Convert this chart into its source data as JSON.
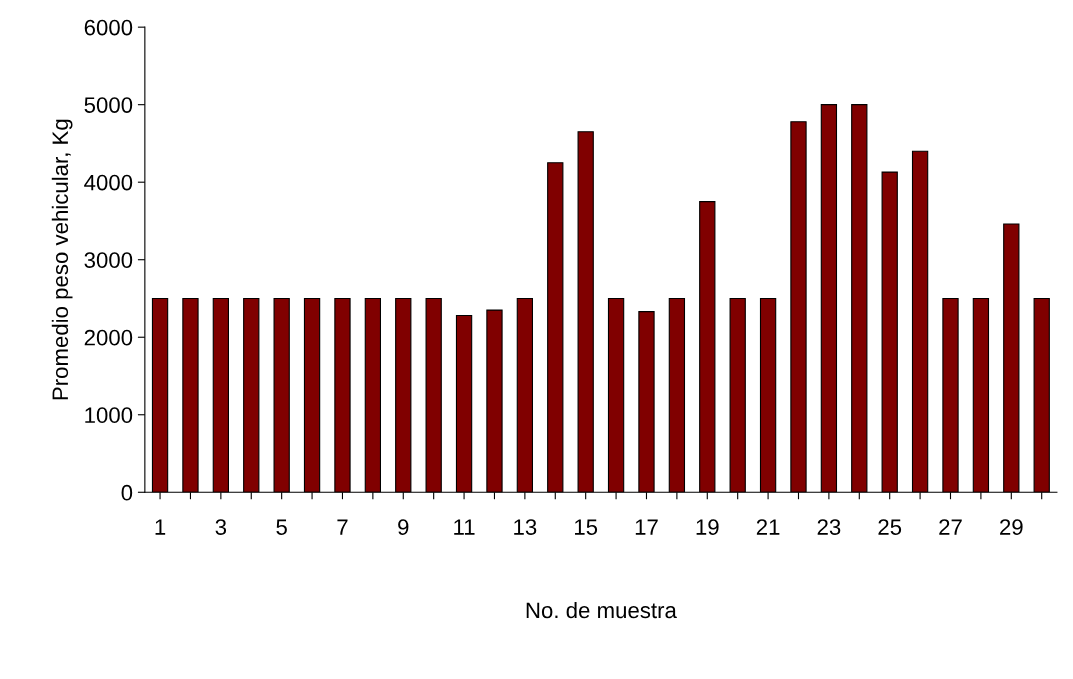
{
  "chart_data": {
    "type": "bar",
    "xlabel": "No. de muestra",
    "ylabel": "Promedio peso vehicular, Kg",
    "categories": [
      "1",
      null,
      "3",
      null,
      "5",
      null,
      "7",
      null,
      "9",
      null,
      "11",
      null,
      "13",
      null,
      "15",
      null,
      "17",
      null,
      "19",
      null,
      "21",
      null,
      "23",
      null,
      "25",
      null,
      "27",
      null,
      "29",
      null
    ],
    "values": [
      2500,
      2500,
      2500,
      2500,
      2500,
      2500,
      2500,
      2500,
      2500,
      2500,
      2280,
      2350,
      2500,
      4250,
      4650,
      2500,
      2330,
      2500,
      3750,
      2500,
      2500,
      4780,
      5000,
      5000,
      4130,
      4400,
      2500,
      2500,
      3460,
      2500
    ],
    "color": "#800000",
    "ylim": [
      0,
      6000
    ],
    "yticks": [
      0,
      1000,
      2000,
      3000,
      4000,
      5000,
      6000
    ],
    "grid": false,
    "legend": false
  }
}
